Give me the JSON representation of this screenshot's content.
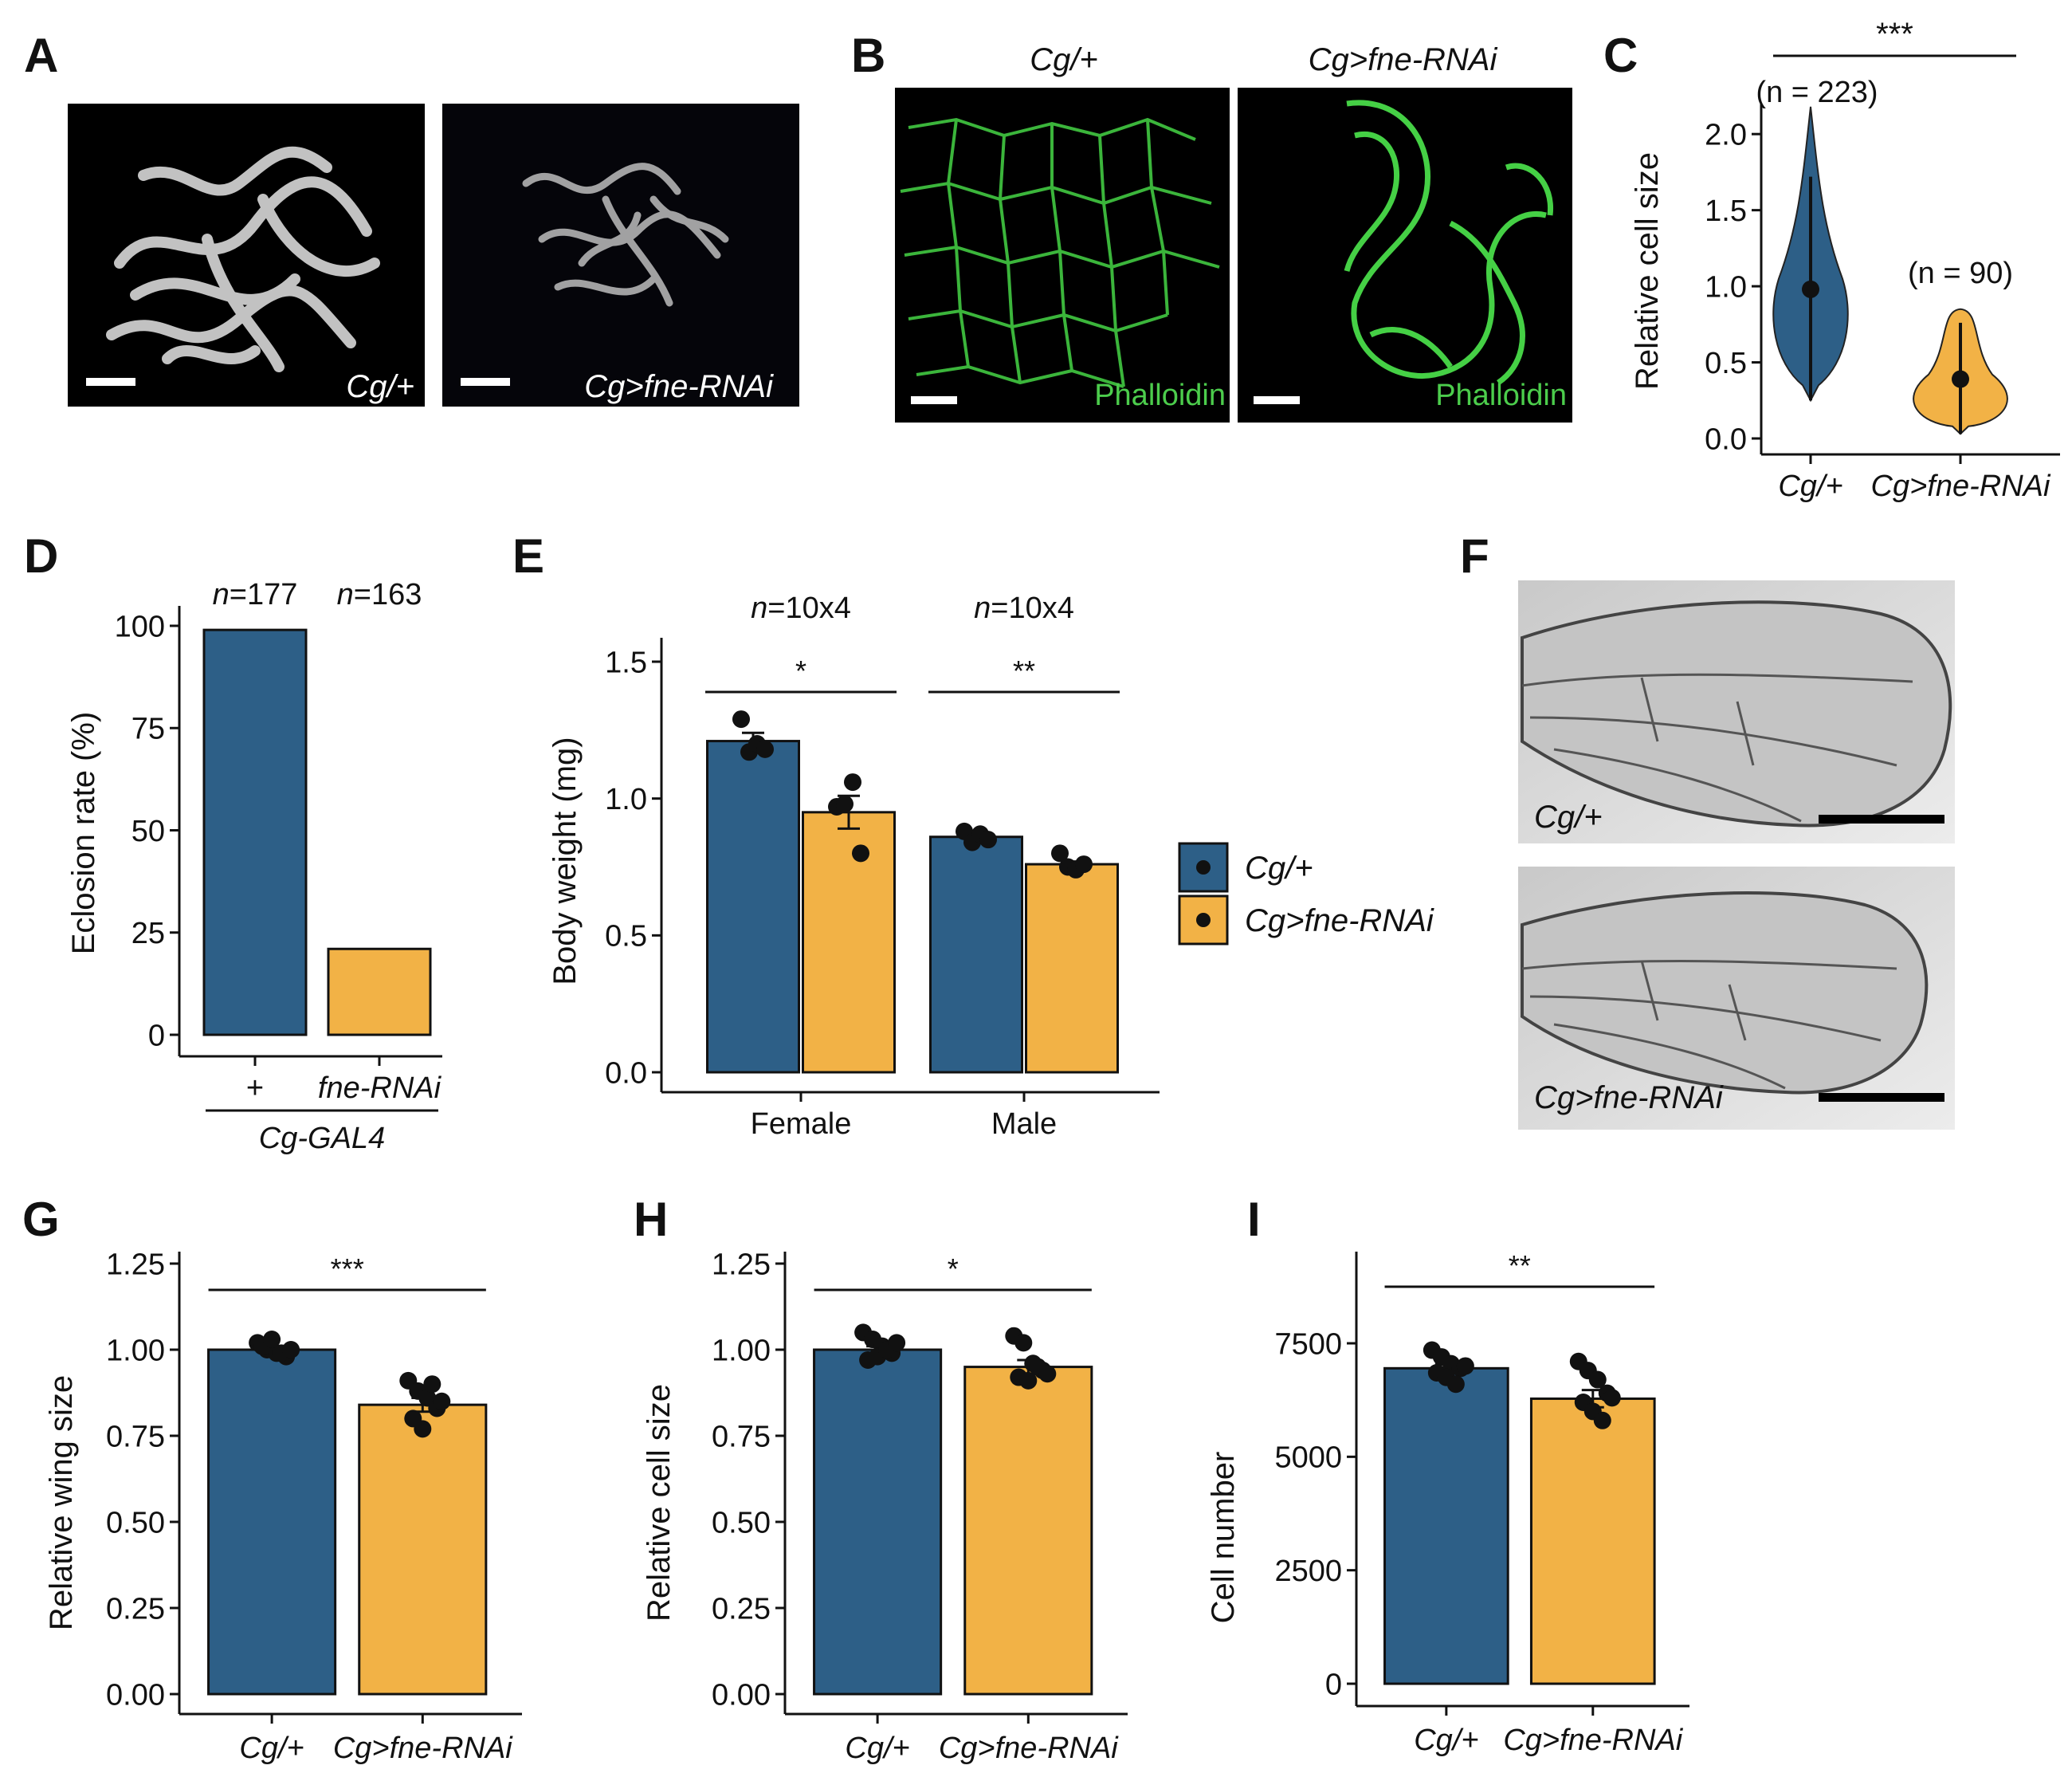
{
  "colors": {
    "blue": "#2d5f87",
    "orange": "#f2b246",
    "green": "#4ccd4c",
    "dark": "#111111",
    "wing_bg": "#d9d9d9"
  },
  "panel_letters": [
    "A",
    "B",
    "C",
    "D",
    "E",
    "F",
    "G",
    "H",
    "I"
  ],
  "panel_a": {
    "labels": [
      "Cg/+",
      "Cg>fne-RNAi"
    ]
  },
  "panel_b": {
    "headers": [
      "Cg/+",
      "Cg>fne-RNAi"
    ],
    "stain_labels": [
      "Phalloidin",
      "Phalloidin"
    ]
  },
  "panel_f": {
    "labels": [
      "Cg/+",
      "Cg>fne-RNAi"
    ]
  },
  "chart_data": [
    {
      "panel": "C",
      "type": "violin",
      "ylabel": "Relative cell size",
      "categories": [
        "Cg/+",
        "Cg>fne-RNAi"
      ],
      "ylim": [
        0,
        2.2
      ],
      "yticks": [
        "0.0",
        "0.5",
        "1.0",
        "1.5",
        "2.0"
      ],
      "n_labels": [
        "(n = 223)",
        "(n = 90)"
      ],
      "significance": "***",
      "series": [
        {
          "name": "Cg/+",
          "median": 0.98,
          "min": 0.25,
          "max": 2.18,
          "color": "#2d5f87"
        },
        {
          "name": "Cg>fne-RNAi",
          "median": 0.39,
          "min": 0.03,
          "max": 0.85,
          "color": "#f2b246"
        }
      ]
    },
    {
      "panel": "D",
      "type": "bar",
      "ylabel": "Eclosion rate (%)",
      "categories": [
        "+",
        "fne-RNAi"
      ],
      "group_label": "Cg-GAL4",
      "values": [
        99,
        21
      ],
      "ylim": [
        0,
        100
      ],
      "yticks": [
        "0",
        "25",
        "50",
        "75",
        "100"
      ],
      "n_prefix": "n",
      "n_labels": [
        "=177",
        "=163"
      ]
    },
    {
      "panel": "E",
      "type": "bar",
      "ylabel": "Body weight (mg)",
      "categories": [
        "Female",
        "Male"
      ],
      "ylim": [
        0,
        1.5
      ],
      "yticks": [
        "0.0",
        "0.5",
        "1.0",
        "1.5"
      ],
      "n_prefix": "n",
      "n_labels": [
        "=10x4",
        "=10x4"
      ],
      "significance": [
        "*",
        "**"
      ],
      "legend": [
        "Cg/+",
        "Cg>fne-RNAi"
      ],
      "legend_position": "right",
      "series": [
        {
          "name": "Cg/+",
          "values": [
            1.21,
            0.86
          ],
          "se": [
            0.03,
            0.02
          ],
          "points": [
            [
              1.29,
              1.17,
              1.2,
              1.18
            ],
            [
              0.88,
              0.84,
              0.87,
              0.85
            ]
          ]
        },
        {
          "name": "Cg>fne-RNAi",
          "values": [
            0.95,
            0.76
          ],
          "se": [
            0.06,
            0.01
          ],
          "points": [
            [
              0.97,
              0.98,
              1.06,
              0.8
            ],
            [
              0.8,
              0.75,
              0.74,
              0.76
            ]
          ]
        }
      ]
    },
    {
      "panel": "G",
      "type": "bar",
      "ylabel": "Relative wing size",
      "categories": [
        "Cg/+",
        "Cg>fne-RNAi"
      ],
      "ylim": [
        0,
        1.25
      ],
      "yticks": [
        "0.00",
        "0.25",
        "0.50",
        "0.75",
        "1.00",
        "1.25"
      ],
      "significance": "***",
      "values": [
        1.0,
        0.84
      ],
      "se": [
        0.005,
        0.02
      ],
      "points": [
        [
          1.02,
          1.0,
          0.99,
          0.98,
          1.01,
          1.03,
          0.99,
          1.0
        ],
        [
          0.91,
          0.88,
          0.86,
          0.83,
          0.8,
          0.77,
          0.9,
          0.85
        ]
      ]
    },
    {
      "panel": "H",
      "type": "bar",
      "ylabel": "Relative cell size",
      "categories": [
        "Cg/+",
        "Cg>fne-RNAi"
      ],
      "ylim": [
        0,
        1.25
      ],
      "yticks": [
        "0.00",
        "0.25",
        "0.50",
        "0.75",
        "1.00",
        "1.25"
      ],
      "significance": "*",
      "values": [
        1.0,
        0.95
      ],
      "se": [
        0.01,
        0.02
      ],
      "points": [
        [
          1.05,
          1.03,
          1.01,
          0.99,
          0.97,
          0.98,
          1.0,
          1.02
        ],
        [
          1.04,
          1.02,
          0.96,
          0.94,
          0.92,
          0.91,
          0.95,
          0.93
        ]
      ]
    },
    {
      "panel": "I",
      "type": "bar",
      "ylabel": "Cell number",
      "categories": [
        "Cg/+",
        "Cg>fne-RNAi"
      ],
      "ylim": [
        0,
        7500
      ],
      "yticks": [
        "0",
        "2500",
        "5000",
        "7500"
      ],
      "significance": "**",
      "values": [
        6950,
        6280
      ],
      "se": [
        90,
        190
      ],
      "points": [
        [
          7350,
          7200,
          7050,
          6950,
          6850,
          6750,
          6600,
          7000
        ],
        [
          7100,
          6900,
          6700,
          6400,
          6200,
          6000,
          5800,
          6300
        ]
      ]
    }
  ]
}
